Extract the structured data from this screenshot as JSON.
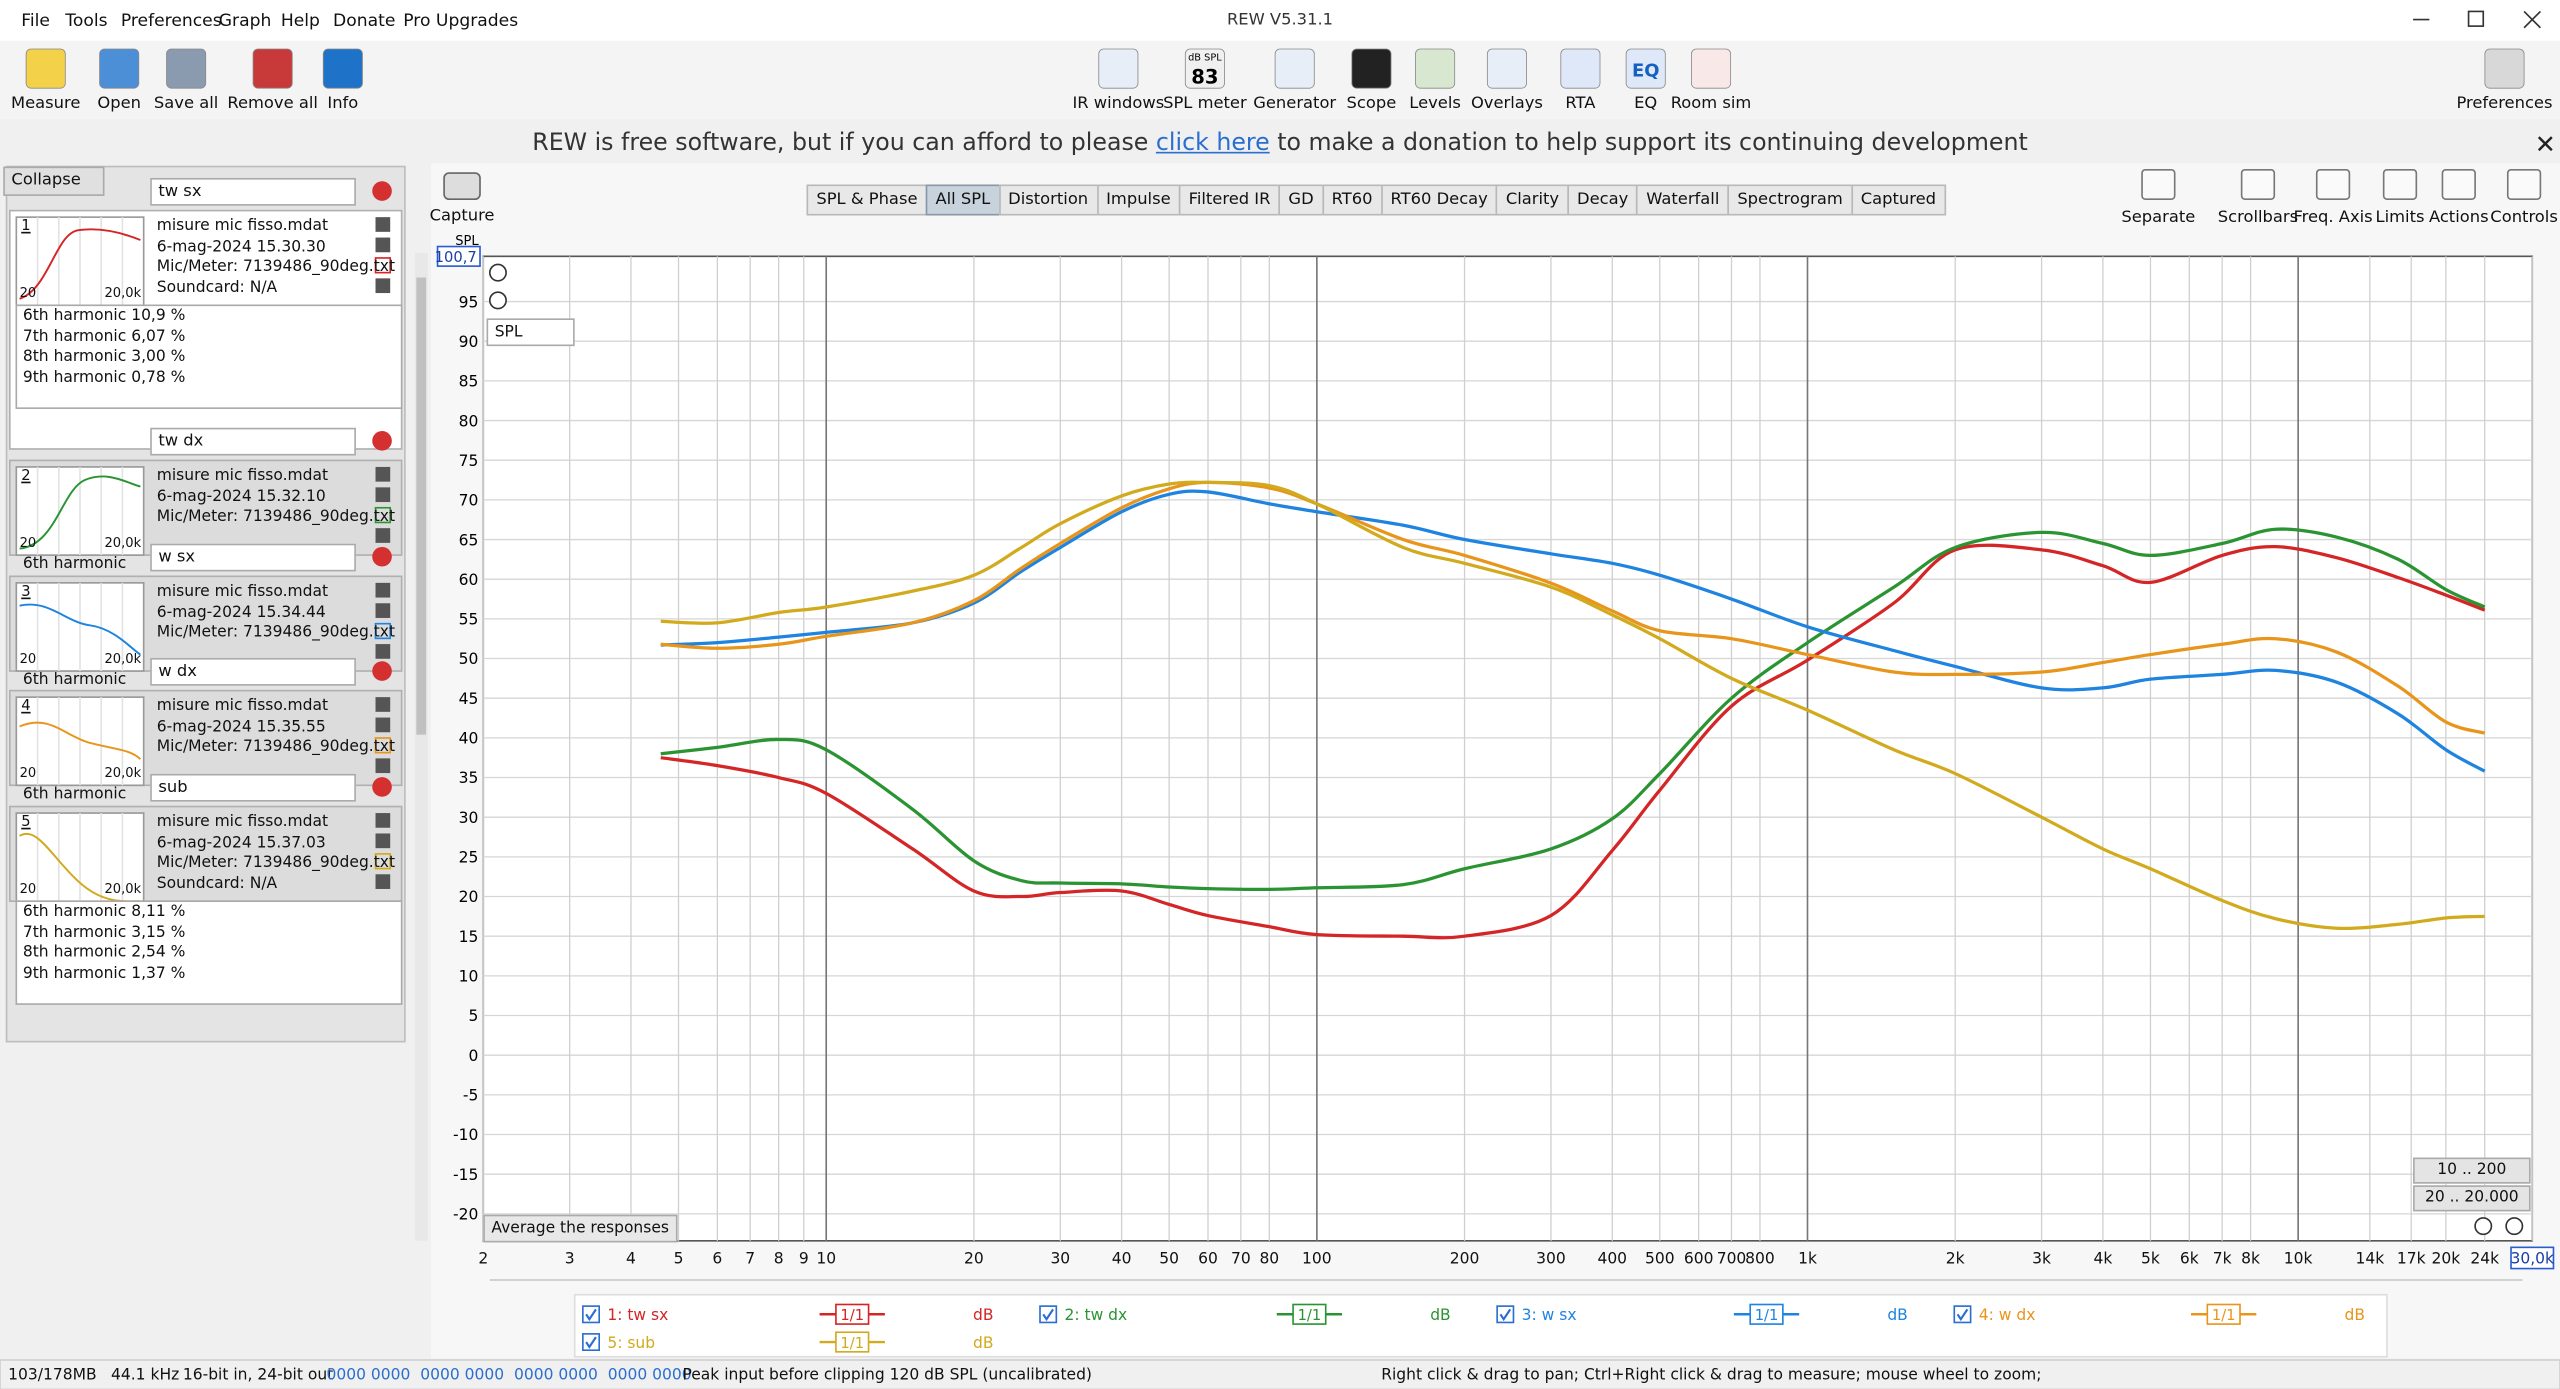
{
  "window": {
    "title": "REW V5.31.1",
    "menu": [
      "File",
      "Tools",
      "Preferences",
      "Graph",
      "Help",
      "Donate",
      "Pro Upgrades"
    ]
  },
  "toolbar": {
    "left": [
      "Measure",
      "Open",
      "Save all",
      "Remove all",
      "Info"
    ],
    "center": [
      "IR windows",
      "SPL meter",
      "Generator",
      "Scope",
      "Levels",
      "Overlays",
      "RTA",
      "EQ",
      "Room sim"
    ],
    "right": [
      "Preferences"
    ],
    "icon_texts": {
      "spl_top": "dB SPL",
      "spl_value": "83",
      "eq": "EQ"
    }
  },
  "banner": {
    "before": "REW is free software, but if you can afford to please ",
    "link": "click here",
    "after": " to make a donation to help support its continuing development"
  },
  "panel": {
    "collapse": "Collapse",
    "thumb_x_labels": [
      "20",
      "20,0k"
    ],
    "measurements": [
      {
        "index": "1",
        "name": "tw sx",
        "file": "misure mic fisso.mdat",
        "date": "6-mag-2024 15.30.30",
        "mic": "Mic/Meter: 7139486_90deg.txt",
        "soundcard": "Soundcard: N/A",
        "harmonics": [
          "6th harmonic 10,9 %",
          "7th harmonic 6,07 %",
          "8th harmonic 3,00 %",
          "9th harmonic 0,78 %"
        ]
      },
      {
        "index": "2",
        "name": "tw dx",
        "file": "misure mic fisso.mdat",
        "date": "6-mag-2024 15.32.10",
        "mic": "Mic/Meter: 7139486_90deg.txt",
        "stub": "6th harmonic"
      },
      {
        "index": "3",
        "name": "w sx",
        "file": "misure mic fisso.mdat",
        "date": "6-mag-2024 15.34.44",
        "mic": "Mic/Meter: 7139486_90deg.txt",
        "stub": "6th harmonic"
      },
      {
        "index": "4",
        "name": "w dx",
        "file": "misure mic fisso.mdat",
        "date": "6-mag-2024 15.35.55",
        "mic": "Mic/Meter: 7139486_90deg.txt",
        "stub": "6th harmonic"
      },
      {
        "index": "5",
        "name": "sub",
        "file": "misure mic fisso.mdat",
        "date": "6-mag-2024 15.37.03",
        "mic": "Mic/Meter: 7139486_90deg.txt",
        "soundcard": "Soundcard: N/A",
        "harmonics": [
          "6th harmonic 8,11 %",
          "7th harmonic 3,15 %",
          "8th harmonic 2,54 %",
          "9th harmonic 1,37 %"
        ]
      }
    ]
  },
  "graph_tabs": [
    "SPL & Phase",
    "All SPL",
    "Distortion",
    "Impulse",
    "Filtered IR",
    "GD",
    "RT60",
    "RT60 Decay",
    "Clarity",
    "Decay",
    "Waterfall",
    "Spectrogram",
    "Captured"
  ],
  "active_tab": 1,
  "graph_tools": [
    "Separate",
    "Scrollbars",
    "Freq. Axis",
    "Limits",
    "Actions",
    "Controls"
  ],
  "capture": "Capture",
  "graph": {
    "axis_label": "SPL",
    "dropdown": "SPL",
    "average_button": "Average the responses",
    "range_buttons": [
      "10 .. 200",
      "20 .. 20.000"
    ]
  },
  "chart_data": {
    "type": "line",
    "log_x": true,
    "grid": true,
    "x": [
      4.6,
      6,
      8,
      10,
      15,
      20,
      25,
      30,
      40,
      50,
      60,
      80,
      100,
      150,
      200,
      300,
      400,
      500,
      700,
      1000,
      1500,
      2000,
      3000,
      4000,
      5000,
      7000,
      9000,
      12000,
      16000,
      20000,
      24000
    ],
    "xlim": [
      2,
      30000
    ],
    "ylim": [
      -23.4,
      100.7
    ],
    "xticks": [
      2,
      3,
      4,
      5,
      6,
      7,
      8,
      9,
      10,
      20,
      30,
      40,
      50,
      60,
      70,
      80,
      100,
      200,
      300,
      400,
      500,
      600,
      700,
      800,
      {
        "value": 1000,
        "label": "1k"
      },
      {
        "value": 2000,
        "label": "2k"
      },
      {
        "value": 3000,
        "label": "3k"
      },
      {
        "value": 4000,
        "label": "4k"
      },
      {
        "value": 5000,
        "label": "5k"
      },
      {
        "value": 6000,
        "label": "6k"
      },
      {
        "value": 7000,
        "label": "7k"
      },
      {
        "value": 8000,
        "label": "8k"
      },
      {
        "value": 10000,
        "label": "10k"
      },
      {
        "value": 14000,
        "label": "14k"
      },
      {
        "value": 17000,
        "label": "17k"
      },
      {
        "value": 20000,
        "label": "20k"
      },
      {
        "value": 24000,
        "label": "24k"
      },
      {
        "value": 30000,
        "label": "30,0k"
      }
    ],
    "yticks": [
      {
        "value": 100.7,
        "label": "100,7"
      },
      95,
      90,
      85,
      80,
      75,
      70,
      65,
      60,
      55,
      50,
      45,
      40,
      35,
      30,
      25,
      20,
      15,
      10,
      5,
      0,
      -5,
      -10,
      -15,
      -20
    ],
    "legend_unit": "dB",
    "smoothing": "1/1",
    "series": [
      {
        "name": "1: tw sx",
        "color": "#d42626",
        "values": [
          37.5,
          36.5,
          35,
          33,
          26,
          20.7,
          20,
          20.5,
          20.7,
          19,
          17.6,
          16.2,
          15.2,
          15,
          15,
          17.6,
          25.8,
          33.4,
          44,
          49.8,
          57,
          63.7,
          63.7,
          61.7,
          59.6,
          63,
          64.1,
          62.7,
          60.2,
          58,
          56.1
        ]
      },
      {
        "name": "2: tw dx",
        "color": "#2b9432",
        "values": [
          38,
          38.8,
          39.8,
          38.5,
          31,
          24.5,
          22,
          21.7,
          21.6,
          21.2,
          21,
          20.9,
          21.1,
          21.5,
          23.5,
          26,
          29.8,
          35.5,
          45,
          52,
          59,
          64,
          65.9,
          64.5,
          63,
          64.5,
          66.3,
          65.3,
          62.5,
          58.7,
          56.5
        ]
      },
      {
        "name": "3: w sx",
        "color": "#1f84e0",
        "values": [
          51.7,
          52,
          52.7,
          53.3,
          54.5,
          57,
          61,
          64,
          68.5,
          70.7,
          71,
          69.5,
          68.5,
          66.8,
          65,
          63.2,
          62,
          60.5,
          57.5,
          54,
          51,
          49,
          46.3,
          46.3,
          47.4,
          48,
          48.5,
          47,
          43,
          38.5,
          35.8
        ]
      },
      {
        "name": "4: w dx",
        "color": "#e8951c",
        "values": [
          51.8,
          51.3,
          51.8,
          52.8,
          54.5,
          57.3,
          61.4,
          64.5,
          69,
          71.4,
          72.2,
          71.5,
          69.5,
          65,
          63,
          59.5,
          56,
          53.5,
          52.5,
          50.5,
          48.3,
          48,
          48.3,
          49.5,
          50.5,
          51.8,
          52.5,
          50.8,
          46.5,
          42,
          40.6
        ]
      },
      {
        "name": "5: sub",
        "color": "#d2aa1e",
        "values": [
          54.7,
          54.5,
          55.8,
          56.5,
          58.5,
          60.5,
          64,
          67,
          70.5,
          72,
          72.2,
          71.8,
          69.5,
          64,
          62,
          59,
          55.5,
          52.5,
          47.5,
          43.5,
          38.5,
          35.5,
          30,
          26,
          23.5,
          19.5,
          17.2,
          16,
          16.5,
          17.3,
          17.5
        ]
      }
    ]
  },
  "status": {
    "memory": "103/178MB",
    "rate": "44.1 kHz",
    "bits": "16-bit in, 24-bit out",
    "levels": "0000 0000  0000 0000  0000 0000  0000 0000",
    "peak": "Peak input before clipping 120 dB SPL (uncalibrated)",
    "hint": "Right click & drag to pan; Ctrl+Right click & drag to measure; mouse wheel to zoom;"
  }
}
